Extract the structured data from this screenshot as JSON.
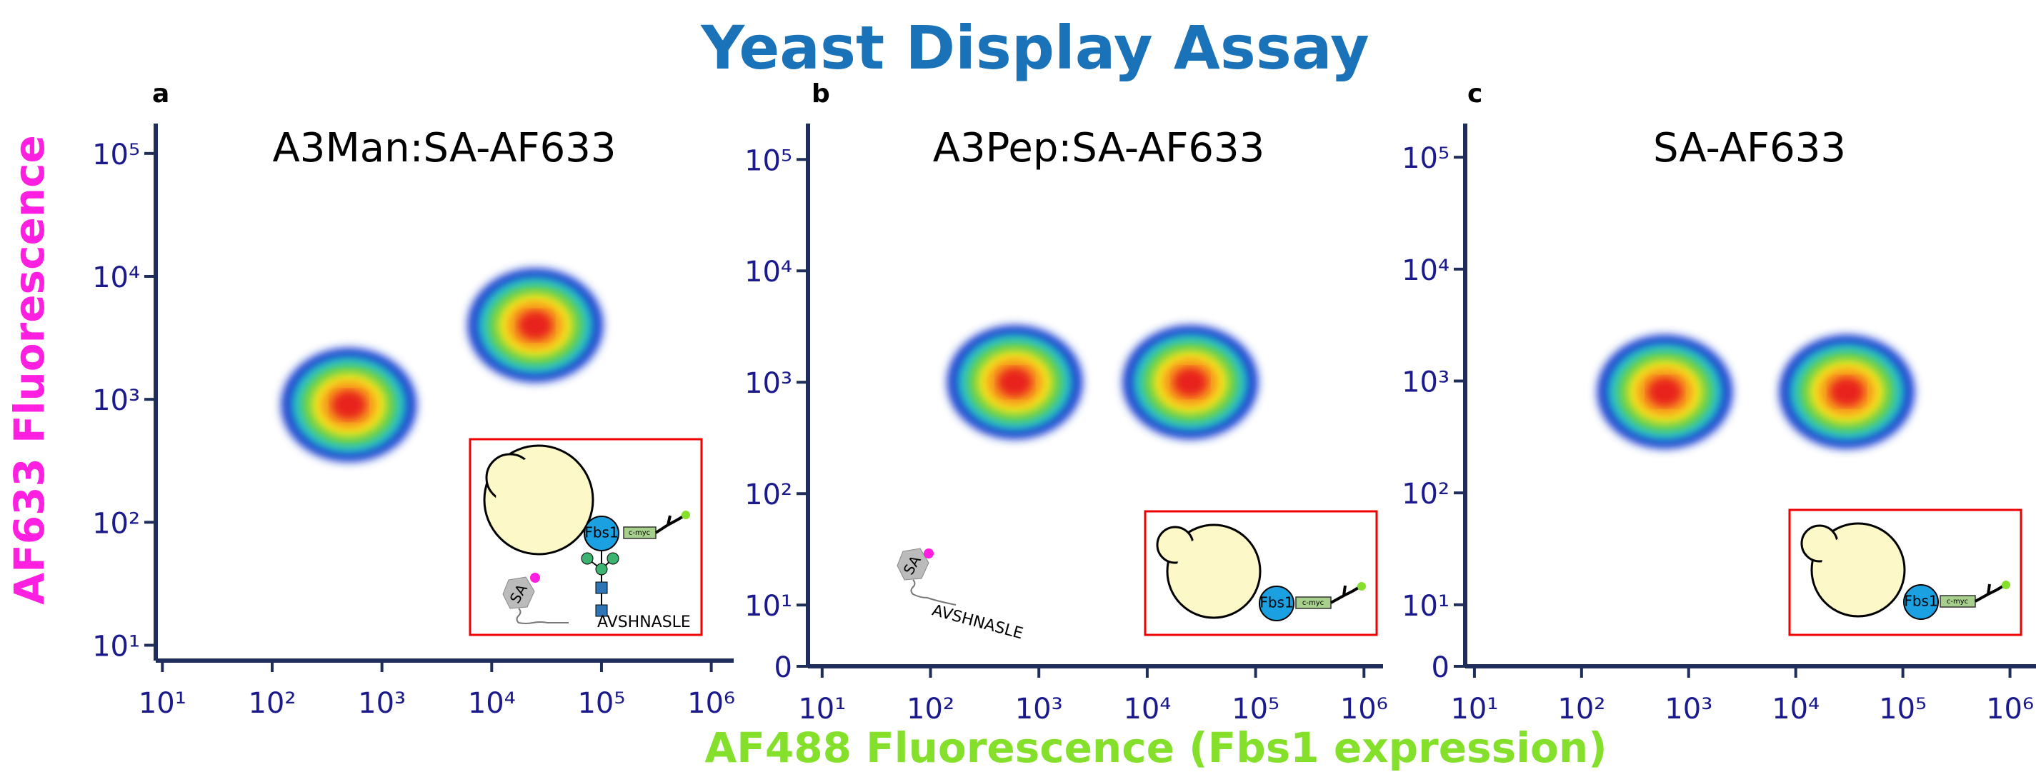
{
  "figure": {
    "title": "Yeast Display Assay",
    "xlabel": "AF488 Fluorescence (Fbs1 expression)",
    "ylabel": "AF633 Fluorescence"
  },
  "chart_data": [
    {
      "type": "density",
      "panel": "a",
      "title": "A3Man:SA-AF633",
      "xscale": "log",
      "yscale": "log",
      "x": [
        500,
        25000
      ],
      "values": [
        900,
        4000
      ],
      "colors": [
        "#1f3fd0",
        "#27c1c9",
        "#6ad24a",
        "#f5e21c",
        "#f7931e",
        "#e8201a"
      ],
      "xlim": [
        8.7,
        1600000
      ],
      "ylim": [
        7.5,
        175000
      ],
      "xticks": [
        {
          "value": 10,
          "label": "10¹"
        },
        {
          "value": 100,
          "label": "10²"
        },
        {
          "value": 1000,
          "label": "10³"
        },
        {
          "value": 10000,
          "label": "10⁴"
        },
        {
          "value": 100000,
          "label": "10⁵"
        },
        {
          "value": 1000000,
          "label": "10⁶"
        }
      ],
      "yticks": [
        {
          "value": 10,
          "label": "10¹"
        },
        {
          "value": 100,
          "label": "10²"
        },
        {
          "value": 1000,
          "label": "10³"
        },
        {
          "value": 10000,
          "label": "10⁴"
        },
        {
          "value": 100000,
          "label": "10⁵"
        }
      ]
    },
    {
      "type": "density",
      "panel": "b",
      "title": "A3Pep:SA-AF633",
      "xscale": "log",
      "yscale": "symlog",
      "x": [
        600,
        25000
      ],
      "values": [
        1000,
        1000
      ],
      "colors": [
        "#1f3fd0",
        "#27c1c9",
        "#6ad24a",
        "#f5e21c",
        "#f7931e",
        "#e8201a"
      ],
      "xlim": [
        7.4,
        1500000
      ],
      "ylim": [
        0,
        210000
      ],
      "xticks": [
        {
          "value": 10,
          "label": "10¹"
        },
        {
          "value": 100,
          "label": "10²"
        },
        {
          "value": 1000,
          "label": "10³"
        },
        {
          "value": 10000,
          "label": "10⁴"
        },
        {
          "value": 100000,
          "label": "10⁵"
        },
        {
          "value": 1000000,
          "label": "10⁶"
        }
      ],
      "yticks": [
        0,
        {
          "value": 10,
          "label": "10¹"
        },
        {
          "value": 100,
          "label": "10²"
        },
        {
          "value": 1000,
          "label": "10³"
        },
        {
          "value": 10000,
          "label": "10⁴"
        },
        {
          "value": 100000,
          "label": "10⁵"
        }
      ]
    },
    {
      "type": "density",
      "panel": "c",
      "title": "SA-AF633",
      "xscale": "log",
      "yscale": "symlog",
      "x": [
        600,
        30000
      ],
      "values": [
        800,
        800
      ],
      "colors": [
        "#1f3fd0",
        "#27c1c9",
        "#6ad24a",
        "#f5e21c",
        "#f7931e",
        "#e8201a"
      ],
      "xlim": [
        8.2,
        1750000
      ],
      "ylim": [
        0,
        200000
      ],
      "xticks": [
        {
          "value": 10,
          "label": "10¹"
        },
        {
          "value": 100,
          "label": "10²"
        },
        {
          "value": 1000,
          "label": "10³"
        },
        {
          "value": 10000,
          "label": "10⁴"
        },
        {
          "value": 100000,
          "label": "10⁵"
        },
        {
          "value": 1000000,
          "label": "10⁶"
        }
      ],
      "yticks": [
        0,
        {
          "value": 10,
          "label": "10¹"
        },
        {
          "value": 100,
          "label": "10²"
        },
        {
          "value": 1000,
          "label": "10³"
        },
        {
          "value": 10000,
          "label": "10⁴"
        },
        {
          "value": 100000,
          "label": "10⁵"
        }
      ]
    }
  ],
  "insets": [
    {
      "labels": [
        "Fbs1",
        "c-myc",
        "SA",
        "AVSHNASLE"
      ]
    },
    {
      "labels": [
        "Fbs1",
        "c-myc",
        "SA",
        "AVSHNASLE"
      ]
    },
    {
      "labels": [
        "Fbs1",
        "c-myc"
      ]
    }
  ]
}
